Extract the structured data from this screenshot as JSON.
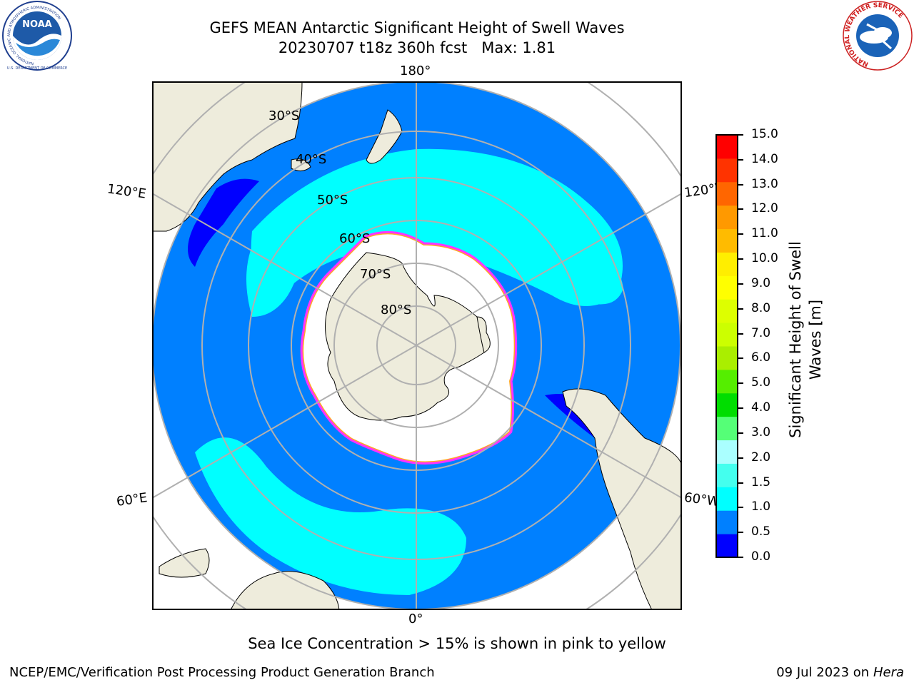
{
  "header": {
    "title_line1": "GEFS MEAN Antarctic Significant Height of Swell Waves",
    "title_line2": "20230707 t18z 360h fcst   Max: 1.81"
  },
  "logos": {
    "left": {
      "ring_text": "NATIONAL OCEANIC AND ATMOSPHERIC ADMINISTRATION",
      "bottom_text": "U.S. DEPARTMENT OF COMMERCE",
      "center": "NOAA"
    },
    "right": {
      "ring_text": "NATIONAL WEATHER SERVICE"
    }
  },
  "map": {
    "longitude_labels": {
      "top": "180°",
      "upper_left": "120°E",
      "upper_right": "120°W",
      "lower_left": "60°E",
      "lower_right": "60°W",
      "bottom": "0°"
    },
    "latitude_labels": [
      "30°S",
      "40°S",
      "50°S",
      "60°S",
      "70°S",
      "80°S"
    ],
    "colors": {
      "land": "#eeecdc",
      "ocean_0_1": "#0080ff",
      "ocean_1_1_5": "#00ffff",
      "ocean_0_0_5": "#0000ff",
      "ice": "#ffffff",
      "ice_edge": "#ff33ff",
      "ice_edge_inner": "#ffaa22",
      "grid": "#b0b0b0"
    }
  },
  "colorbar": {
    "label_line1": "Significant Height of Swell",
    "label_line2": "Waves [m]",
    "ticks": [
      "15.0",
      "14.0",
      "13.0",
      "12.0",
      "11.0",
      "10.0",
      "9.0",
      "8.0",
      "7.0",
      "6.0",
      "5.0",
      "4.0",
      "3.0",
      "2.0",
      "1.5",
      "1.0",
      "0.5",
      "0.0"
    ],
    "colors": [
      "#0000ff",
      "#0080ff",
      "#00ffff",
      "#44ffee",
      "#aaffff",
      "#55ff77",
      "#00dd00",
      "#55ee00",
      "#aaee00",
      "#ccff00",
      "#ddff00",
      "#ffff00",
      "#ffee00",
      "#ffbb00",
      "#ff9900",
      "#ff6600",
      "#ff3300",
      "#ff0000"
    ]
  },
  "footer": {
    "note": "Sea Ice Concentration > 15% is shown in pink to yellow",
    "left": "NCEP/EMC/Verification Post Processing Product Generation Branch",
    "right_date": "09 Jul 2023 on ",
    "right_host": "Hera"
  }
}
